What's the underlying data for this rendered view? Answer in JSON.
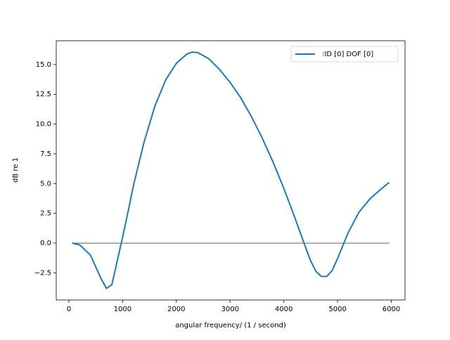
{
  "chart_data": {
    "type": "line",
    "xlabel": "angular frequency/ (1 / second)",
    "ylabel": "dB re 1",
    "x": [
      60,
      200,
      400,
      600,
      700,
      800,
      900,
      1000,
      1100,
      1200,
      1400,
      1600,
      1800,
      2000,
      2200,
      2300,
      2400,
      2600,
      2800,
      3000,
      3200,
      3400,
      3600,
      3800,
      4000,
      4200,
      4400,
      4500,
      4600,
      4700,
      4800,
      4900,
      5000,
      5100,
      5200,
      5400,
      5600,
      5800,
      5960
    ],
    "series": [
      {
        "name": ":ID [0] DOF [0]",
        "color": "#1f77b4",
        "values": [
          0,
          -0.15,
          -1.0,
          -3.0,
          -3.8,
          -3.5,
          -1.5,
          0.5,
          2.6,
          4.8,
          8.5,
          11.5,
          13.7,
          15.1,
          15.9,
          16.05,
          16.0,
          15.5,
          14.6,
          13.5,
          12.2,
          10.6,
          8.8,
          6.8,
          4.6,
          2.2,
          -0.3,
          -1.5,
          -2.4,
          -2.8,
          -2.8,
          -2.3,
          -1.3,
          -0.2,
          0.9,
          2.6,
          3.7,
          4.5,
          5.1
        ]
      }
    ],
    "hline": {
      "y": 0,
      "x": [
        60,
        5960
      ],
      "color": "#000000"
    },
    "xlim": [
      -235,
      6255
    ],
    "ylim": [
      -4.78,
      17.0
    ],
    "xticks": [
      0,
      1000,
      2000,
      3000,
      4000,
      5000,
      6000
    ],
    "yticks": [
      {
        "value": -2.5,
        "label": "−2.5"
      },
      {
        "value": 0,
        "label": "0.0"
      },
      2.5,
      {
        "value": 5,
        "label": "5.0"
      },
      7.5,
      {
        "value": 10,
        "label": "10.0"
      },
      12.5,
      {
        "value": 15,
        "label": "15.0"
      }
    ],
    "legend": "upper right"
  }
}
